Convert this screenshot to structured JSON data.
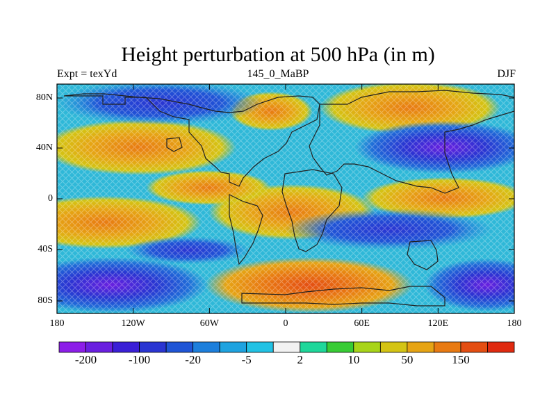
{
  "title": "Height perturbation at 500 hPa (in m)",
  "subtitle_left": "Expt = texYd",
  "subtitle_center": "145_0_MaBP",
  "subtitle_right": "DJF",
  "lat_labels": [
    "80N",
    "40N",
    "0",
    "40S",
    "80S"
  ],
  "lon_labels": [
    "180",
    "120W",
    "60W",
    "0",
    "60E",
    "120E",
    "180"
  ],
  "colorbar": {
    "labels": [
      "-200",
      "-100",
      "-20",
      "-5",
      "2",
      "10",
      "50",
      "150"
    ],
    "colors": [
      "#8c1ee8",
      "#6a1fe0",
      "#3a1fd6",
      "#2a35d2",
      "#1f55d6",
      "#1d7fdc",
      "#1ea3e0",
      "#22c2e4",
      "#f2f2f2",
      "#1ed79a",
      "#38cc35",
      "#a8d419",
      "#d4c414",
      "#e6a414",
      "#e87a12",
      "#e44e12",
      "#e02a10"
    ]
  },
  "map_data": {
    "type": "filled-contour",
    "lat_range": [
      -90,
      90
    ],
    "lon_range": [
      -180,
      180
    ],
    "units": "m",
    "features": [
      {
        "region": "North Pacific / Arctic band",
        "sign": "negative"
      },
      {
        "region": "North Atlantic / N America 40N",
        "sign": "positive"
      },
      {
        "region": "Eurasia 80N",
        "sign": "positive"
      },
      {
        "region": "East Asia / NW Pacific 40N",
        "sign": "negative"
      },
      {
        "region": "Tropics",
        "sign": "positive"
      },
      {
        "region": "Southern mid-latitudes 40S",
        "sign": "negative"
      },
      {
        "region": "South Atlantic / Indian 70S",
        "sign": "positive"
      },
      {
        "region": "Pacific sector 70S",
        "sign": "negative"
      }
    ]
  }
}
